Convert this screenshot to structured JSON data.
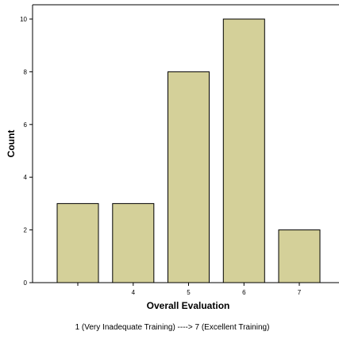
{
  "chart_data": {
    "type": "bar",
    "categories": [
      "",
      "4",
      "5",
      "6",
      "7"
    ],
    "values": [
      3,
      3,
      8,
      10,
      2
    ],
    "title": "",
    "xlabel": "Overall Evaluation",
    "ylabel": "Count",
    "ylim": [
      0,
      10
    ],
    "yticks": [
      "0",
      "2",
      "4",
      "6",
      "8",
      "10"
    ],
    "footnote": "1 (Very Inadequate Training) ----> 7 (Excellent Training)",
    "grid": false,
    "legend": "none",
    "colors": {
      "bar_fill": "#d4d099",
      "bar_stroke": "#000000",
      "axis": "#000000",
      "background": "#ffffff"
    }
  }
}
